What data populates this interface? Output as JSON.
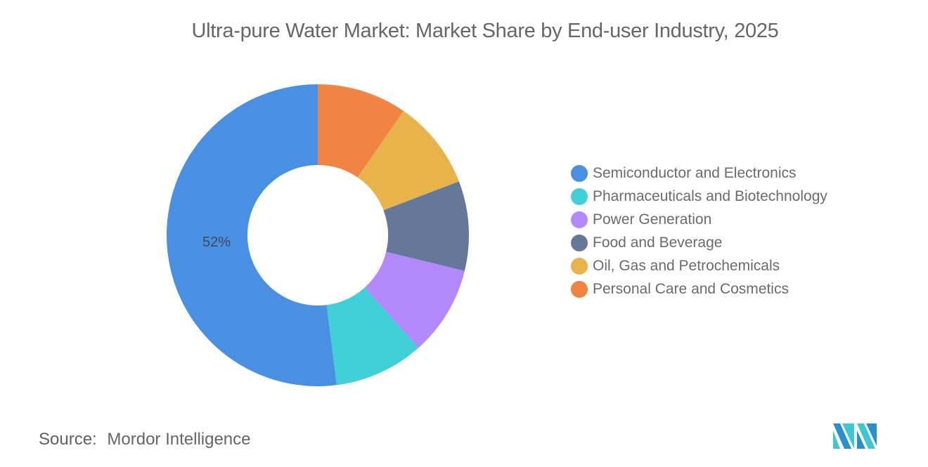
{
  "chart_data": {
    "type": "pie",
    "variant": "donut",
    "title": "Ultra-pure Water Market: Market Share by End-user Industry, 2025",
    "categories": [
      "Semiconductor and Electronics",
      "Pharmaceuticals and Biotechnology",
      "Power Generation",
      "Food and Beverage",
      "Oil, Gas and Petrochemicals",
      "Personal Care and Cosmetics"
    ],
    "values": [
      52,
      9.6,
      9.6,
      9.6,
      9.6,
      9.6
    ],
    "colors": [
      "#4a90e2",
      "#40d0d8",
      "#b388fa",
      "#66789a",
      "#e9b34b",
      "#f28443"
    ],
    "data_labels": [
      {
        "category": "Semiconductor and Electronics",
        "text": "52%"
      }
    ],
    "legend_position": "right",
    "start_angle_deg": 0,
    "direction": "counterclockwise-from-top for first slice (Semiconductor on left)"
  },
  "header": {
    "title": "Ultra-pure Water Market: Market Share by End-user Industry, 2025"
  },
  "legend": {
    "items": [
      {
        "label": "Semiconductor and Electronics",
        "color": "#4a90e2"
      },
      {
        "label": "Pharmaceuticals and Biotechnology",
        "color": "#40d0d8"
      },
      {
        "label": "Power Generation",
        "color": "#b388fa"
      },
      {
        "label": "Food and Beverage",
        "color": "#66789a"
      },
      {
        "label": "Oil, Gas and Petrochemicals",
        "color": "#e9b34b"
      },
      {
        "label": "Personal Care and Cosmetics",
        "color": "#f28443"
      }
    ]
  },
  "labels": {
    "semiconductor_pct": "52%"
  },
  "footer": {
    "source_label": "Source:",
    "source_value": "Mordor Intelligence"
  }
}
